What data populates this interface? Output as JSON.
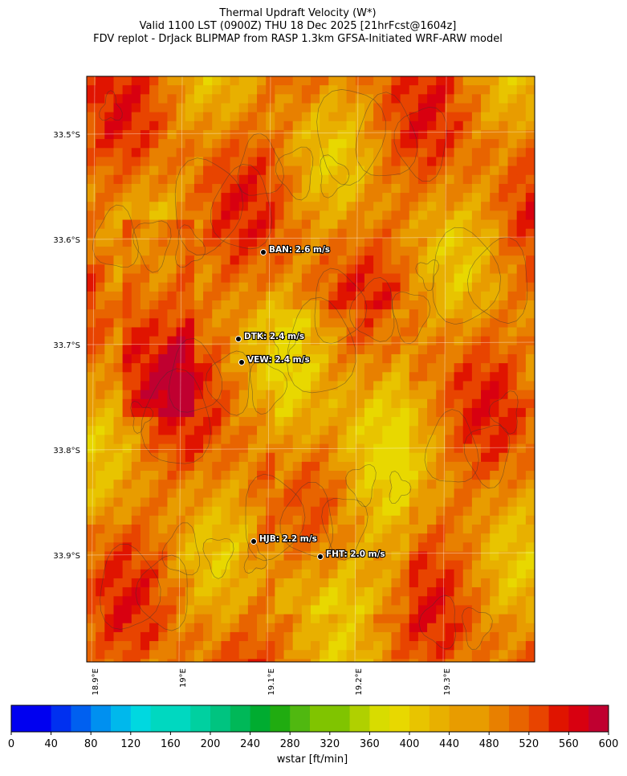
{
  "title": [
    "Thermal Updraft Velocity (W*)",
    "Valid 1100 LST (0900Z) THU 18 Dec 2025 [21hrFcst@1604z]",
    "FDV replot - DrJack BLIPMAP from RASP 1.3km GFSA-Initiated WRF-ARW model"
  ],
  "lat_labels": [
    "33.5°S",
    "33.6°S",
    "33.7°S",
    "33.8°S",
    "33.9°S"
  ],
  "lon_labels": [
    "18.9°E",
    "19°E",
    "19.1°E",
    "19.2°E",
    "19.3°E"
  ],
  "stations": [
    "BAN: 2.6 m/s",
    "DTK: 2.4 m/s",
    "VEW: 2.4 m/s",
    "HJB: 2.2 m/s",
    "FHT: 2.0 m/s"
  ],
  "colorbar": {
    "label": "wstar [ft/min]",
    "lim": [
      0,
      600
    ],
    "ticks": [
      0,
      40,
      80,
      120,
      160,
      200,
      240,
      280,
      320,
      360,
      400,
      440,
      480,
      520,
      560,
      600
    ],
    "colors": [
      "#0000f0",
      "#0030f0",
      "#0060f0",
      "#0090f0",
      "#00b8ec",
      "#00d8e0",
      "#00d8c0",
      "#00d0a0",
      "#00c480",
      "#00b858",
      "#00ac30",
      "#20ac10",
      "#50b810",
      "#80c400",
      "#b0d000",
      "#d8dc00",
      "#e8d800",
      "#e8c400",
      "#e8b000",
      "#e89c00",
      "#e88000",
      "#e86400",
      "#e84400",
      "#e01400",
      "#d80010",
      "#c00030"
    ]
  }
}
